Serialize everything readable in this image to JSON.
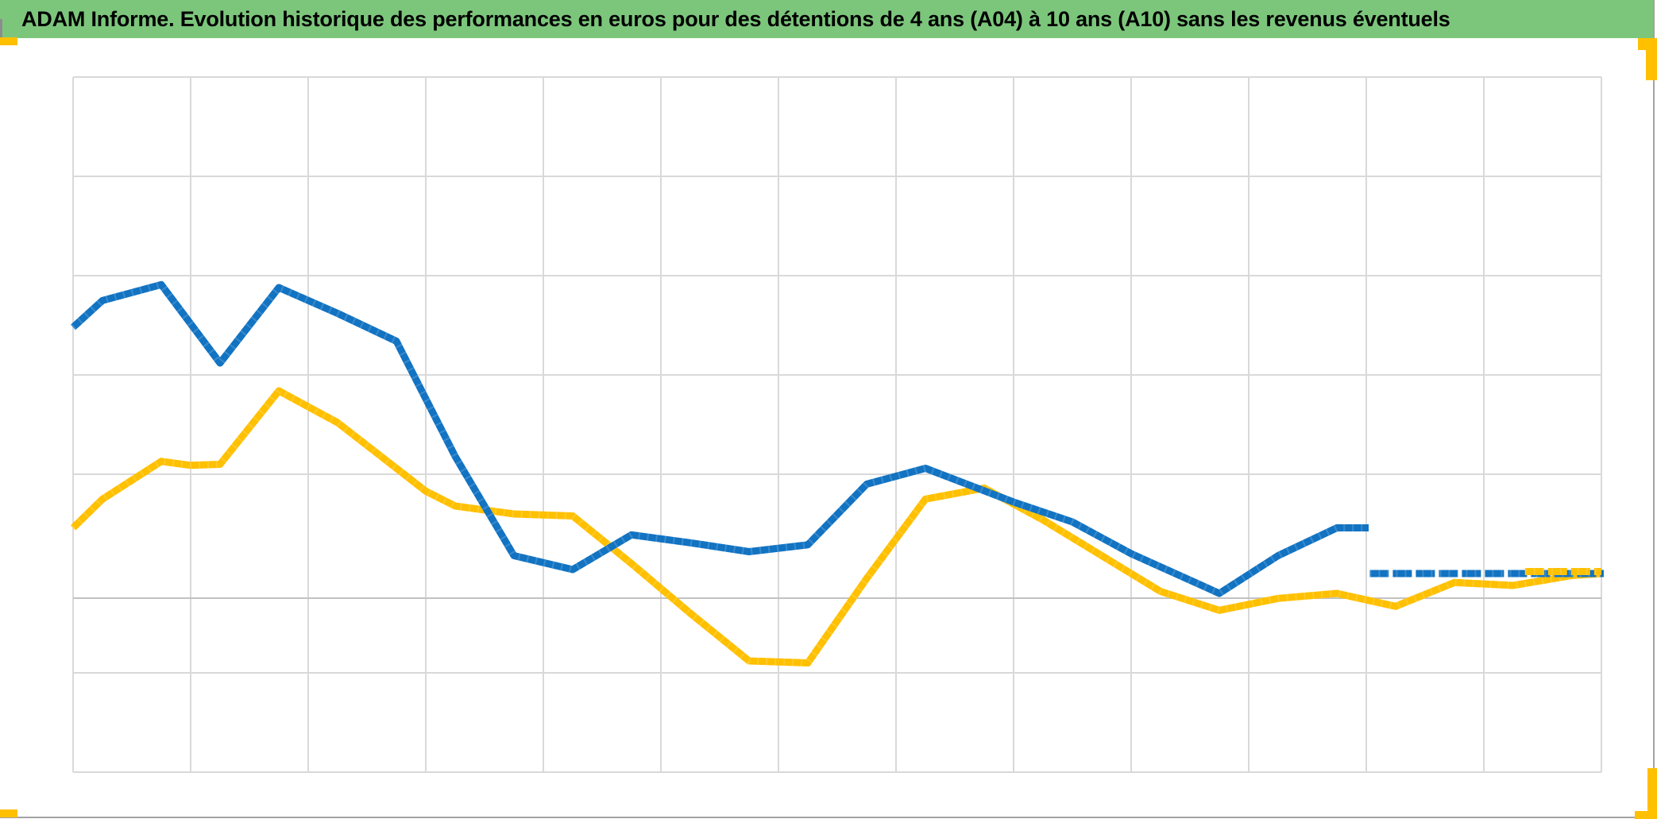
{
  "header": {
    "title": "ADAM Informe. Evolution historique des performances en euros pour des détentions de 4 ans (A04) à 10 ans (A10) sans les revenus éventuels"
  },
  "colors": {
    "header_bg": "#7CC67C",
    "title_text": "#000000",
    "handle_yellow": "#FFC000",
    "window_border_gray": "#A2A2A2",
    "notch_gray": "#8C8C8C",
    "gridline": "#D9D9D9",
    "axis_line": "#C2C2C2",
    "series_blue": "#1273C2",
    "series_yellow": "#FFC000",
    "plot_bg": "#FFFFFF"
  },
  "chart_data": {
    "type": "line",
    "title": "ADAM Informe. Evolution historique des performances en euros pour des détentions de 4 ans (A04) à 10 ans (A10) sans les revenus éventuels",
    "xlabel": "",
    "ylabel": "",
    "grid": true,
    "legend_visible": false,
    "x_axis": {
      "range": [
        0,
        13
      ],
      "gridline_count": 14,
      "tick_labels_visible": false
    },
    "y_axis": {
      "range": [
        0,
        7
      ],
      "gridlines_at": [
        0,
        1,
        3,
        4,
        5,
        6,
        7
      ],
      "axis_line_at": 1.752,
      "tick_labels_visible": false
    },
    "series": [
      {
        "name": "yellow-line",
        "color": "#FFC000",
        "style": "solid",
        "points": [
          [
            0,
            2.46
          ],
          [
            0.25,
            2.75
          ],
          [
            0.75,
            3.13
          ],
          [
            1.0,
            3.09
          ],
          [
            1.25,
            3.1
          ],
          [
            1.75,
            3.84
          ],
          [
            2.25,
            3.52
          ],
          [
            2.75,
            3.06
          ],
          [
            3.0,
            2.83
          ],
          [
            3.25,
            2.68
          ],
          [
            3.75,
            2.6
          ],
          [
            4.25,
            2.58
          ],
          [
            4.75,
            2.1
          ],
          [
            5.25,
            1.6
          ],
          [
            5.75,
            1.12
          ],
          [
            6.25,
            1.1
          ],
          [
            6.75,
            1.95
          ],
          [
            7.25,
            2.75
          ],
          [
            7.75,
            2.86
          ],
          [
            8.25,
            2.54
          ],
          [
            8.75,
            2.18
          ],
          [
            9.25,
            1.82
          ],
          [
            9.75,
            1.63
          ],
          [
            10.25,
            1.75
          ],
          [
            10.75,
            1.8
          ],
          [
            11.25,
            1.67
          ],
          [
            11.75,
            1.91
          ],
          [
            12.25,
            1.88
          ],
          [
            12.75,
            1.98
          ],
          [
            13.0,
            2.0
          ]
        ]
      },
      {
        "name": "blue-line",
        "color": "#1273C2",
        "style": "solid",
        "points": [
          [
            0,
            4.48
          ],
          [
            0.25,
            4.75
          ],
          [
            0.75,
            4.91
          ],
          [
            1.25,
            4.12
          ],
          [
            1.75,
            4.88
          ],
          [
            2.25,
            4.62
          ],
          [
            2.75,
            4.34
          ],
          [
            3.25,
            3.18
          ],
          [
            3.75,
            2.18
          ],
          [
            4.25,
            2.04
          ],
          [
            4.75,
            2.39
          ],
          [
            5.25,
            2.31
          ],
          [
            5.75,
            2.22
          ],
          [
            6.25,
            2.29
          ],
          [
            6.75,
            2.9
          ],
          [
            7.25,
            3.06
          ],
          [
            8.0,
            2.72
          ],
          [
            8.5,
            2.52
          ],
          [
            9.0,
            2.2
          ],
          [
            9.75,
            1.8
          ],
          [
            10.25,
            2.18
          ],
          [
            10.75,
            2.46
          ],
          [
            11.02,
            2.46
          ]
        ]
      },
      {
        "name": "blue-line-flat-tail",
        "color": "#1273C2",
        "style": "dashed",
        "points": [
          [
            11.03,
            2.0
          ],
          [
            13.02,
            2.0
          ]
        ]
      },
      {
        "name": "yellow-line-tail-overlap",
        "color": "#FFC000",
        "style": "dashed",
        "points": [
          [
            12.35,
            2.02
          ],
          [
            13.0,
            2.02
          ]
        ]
      }
    ]
  }
}
